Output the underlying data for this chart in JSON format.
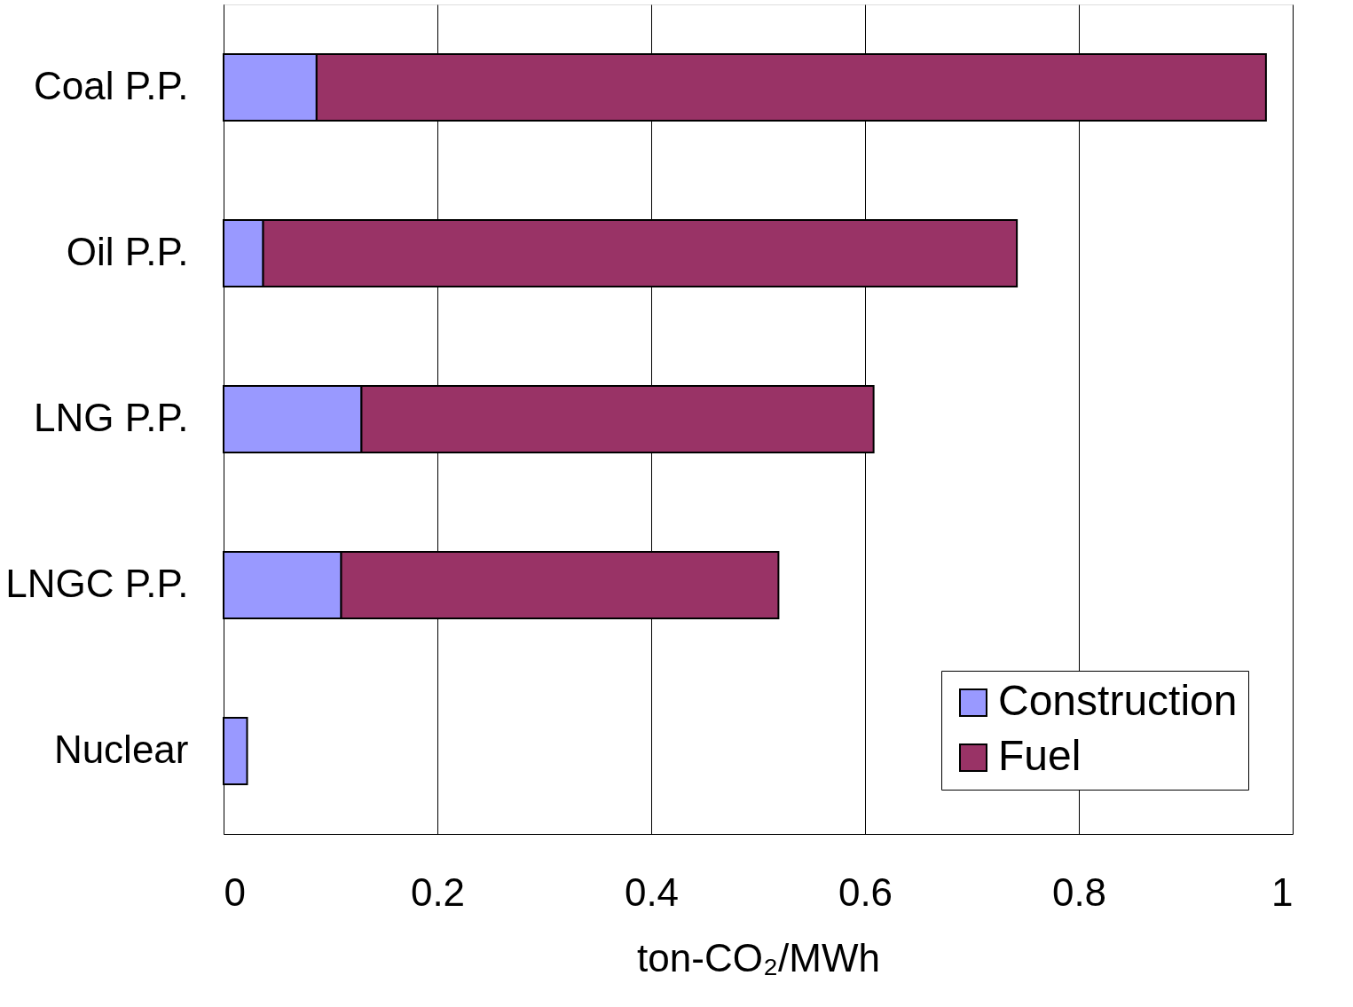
{
  "chart_data": {
    "type": "bar",
    "orientation": "horizontal",
    "stacked": true,
    "categories": [
      "Coal P.P.",
      "Oil P.P.",
      "LNG P.P.",
      "LNGC P.P.",
      "Nuclear"
    ],
    "series": [
      {
        "name": "Construction",
        "color": "#9999ff",
        "values": [
          0.087,
          0.037,
          0.129,
          0.11,
          0.022
        ]
      },
      {
        "name": "Fuel",
        "color": "#993366",
        "values": [
          0.888,
          0.705,
          0.479,
          0.409,
          null
        ]
      }
    ],
    "xlabel": "ton-CO₂/MWh",
    "xlim": [
      0,
      1
    ],
    "xticks": [
      0,
      0.2,
      0.4,
      0.6,
      0.8,
      1
    ],
    "grid": "x",
    "legend": "bottom right"
  }
}
